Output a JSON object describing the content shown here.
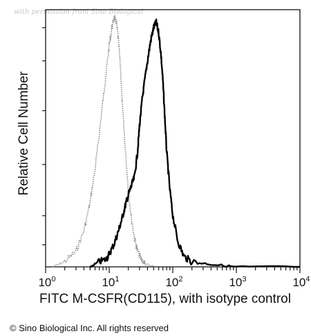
{
  "watermark": "with permission from Sino Biological",
  "copyright": "© Sino Biological Inc. All rights reserved",
  "chart_data": {
    "type": "line",
    "title": "",
    "xlabel": "FITC M-CSFR(CD115), with isotype control",
    "ylabel": "Relative Cell Number",
    "x_scale": "log",
    "xlim": [
      1,
      10000
    ],
    "ylim": [
      0,
      1
    ],
    "grid": false,
    "x_ticks": [
      {
        "value": 1,
        "base": "10",
        "exp": "0"
      },
      {
        "value": 10,
        "base": "10",
        "exp": "1"
      },
      {
        "value": 100,
        "base": "10",
        "exp": "2"
      },
      {
        "value": 1000,
        "base": "10",
        "exp": "3"
      },
      {
        "value": 10000,
        "base": "10",
        "exp": "4"
      }
    ],
    "series": [
      {
        "role": "isotype control",
        "style": "dotted",
        "color": "#8a8a8a",
        "x": [
          1.3,
          2.0,
          3.0,
          4.0,
          5.0,
          6.0,
          7.0,
          8.0,
          9.0,
          10.0,
          11.0,
          12.0,
          13.0,
          14.0,
          15.0,
          16.0,
          18.0,
          20.0,
          22.0,
          25.0,
          28.0,
          32.0,
          38.0,
          50.0
        ],
        "y": [
          0.0,
          0.02,
          0.06,
          0.14,
          0.25,
          0.38,
          0.52,
          0.65,
          0.76,
          0.86,
          0.93,
          0.97,
          0.95,
          0.88,
          0.78,
          0.64,
          0.45,
          0.3,
          0.2,
          0.11,
          0.06,
          0.03,
          0.01,
          0.0
        ]
      },
      {
        "role": "M-CSFR(CD115)",
        "style": "solid",
        "color": "#000000",
        "x": [
          5.0,
          7.0,
          9.0,
          10.0,
          12.0,
          14.0,
          16.0,
          18.0,
          20.0,
          22.0,
          25.0,
          28.0,
          30.0,
          33.0,
          36.0,
          40.0,
          45.0,
          50.0,
          55.0,
          60.0,
          65.0,
          70.0,
          75.0,
          80.0,
          90.0,
          100.0,
          120.0,
          150.0,
          200.0,
          400.0,
          1000.0,
          10000.0
        ],
        "y": [
          0.0,
          0.02,
          0.03,
          0.05,
          0.09,
          0.14,
          0.19,
          0.24,
          0.28,
          0.31,
          0.35,
          0.45,
          0.55,
          0.65,
          0.72,
          0.8,
          0.88,
          0.93,
          0.95,
          0.91,
          0.83,
          0.72,
          0.58,
          0.45,
          0.3,
          0.2,
          0.1,
          0.04,
          0.02,
          0.01,
          0.0,
          0.0
        ]
      }
    ]
  }
}
